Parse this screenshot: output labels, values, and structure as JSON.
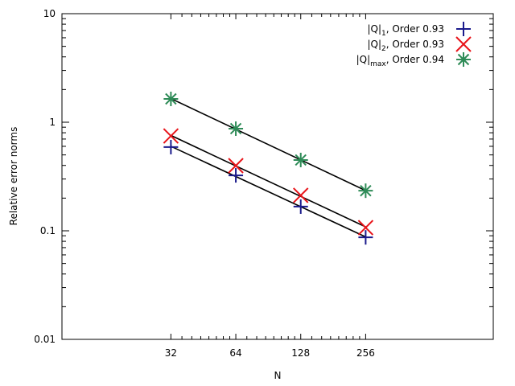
{
  "chart_data": {
    "type": "scatter",
    "title": "",
    "xlabel": "N",
    "ylabel": "Relative error norms",
    "x_scale": "log2",
    "y_scale": "log10",
    "xlim": [
      10,
      1000
    ],
    "ylim": [
      0.01,
      10
    ],
    "x_ticks": [
      32,
      64,
      128,
      256
    ],
    "x_tick_labels": [
      "32",
      "64",
      "128",
      "256"
    ],
    "y_ticks": [
      0.01,
      0.1,
      1,
      10
    ],
    "y_tick_labels": [
      "0.01",
      "0.1",
      "1",
      "10"
    ],
    "grid": false,
    "legend_position": "top-right",
    "x": [
      32,
      64,
      128,
      256
    ],
    "series": [
      {
        "name": "|Q|1, Order 0.93",
        "name_base": "|Q|",
        "name_sub": "1",
        "name_rest": ", Order 0.93",
        "marker": "plus",
        "color": "#1a1a8c",
        "values": [
          0.59,
          0.324,
          0.167,
          0.087
        ],
        "fit_line": true
      },
      {
        "name": "|Q|2, Order 0.93",
        "name_base": "|Q|",
        "name_sub": "2",
        "name_rest": ", Order 0.93",
        "marker": "cross",
        "color": "#e8141a",
        "values": [
          0.748,
          0.398,
          0.212,
          0.107
        ],
        "fit_line": true
      },
      {
        "name": "|Q|max, Order 0.94",
        "name_base": "|Q|",
        "name_sub": "max",
        "name_rest": ", Order 0.94",
        "marker": "star",
        "color": "#2e8b57",
        "values": [
          1.64,
          0.873,
          0.449,
          0.234
        ],
        "fit_line": true
      }
    ],
    "fit_line_color": "#000000",
    "legend_bar_color": "#c07a20"
  }
}
